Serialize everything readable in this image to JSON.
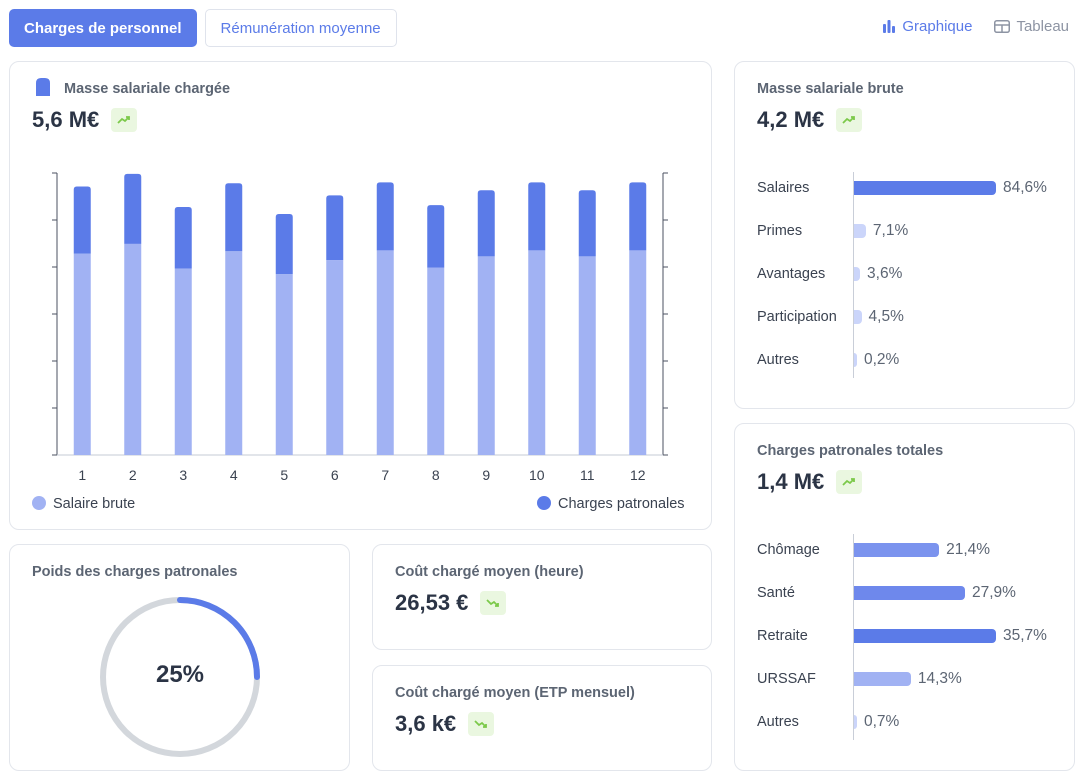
{
  "tabs": [
    {
      "label": "Charges de personnel",
      "active": true
    },
    {
      "label": "Rémunération moyenne",
      "active": false
    }
  ],
  "view_toggle": {
    "chart_label": "Graphique",
    "table_label": "Tableau",
    "active": "Graphique"
  },
  "colors": {
    "accent": "#5b7be8",
    "light": "#a1b2f3",
    "trend_bg": "#eaf7e0",
    "trend_icon": "#7cc94a",
    "donut_track": "#d3d7dc"
  },
  "masse_chargee": {
    "title": "Masse salariale chargée",
    "value": "5,6 M€",
    "trend": "up",
    "legend": {
      "salaire": "Salaire brute",
      "charges": "Charges patronales"
    }
  },
  "chart_data": {
    "type": "bar",
    "stacked": true,
    "categories": [
      "1",
      "2",
      "3",
      "4",
      "5",
      "6",
      "7",
      "8",
      "9",
      "10",
      "11",
      "12"
    ],
    "series": [
      {
        "name": "Salaire brute",
        "color": "#a1b2f3",
        "values": [
          432,
          453,
          400,
          437,
          388,
          418,
          439,
          402,
          426,
          439,
          426,
          439
        ]
      },
      {
        "name": "Charges patronales",
        "color": "#5b7be8",
        "values": [
          144,
          150,
          132,
          146,
          129,
          139,
          146,
          134,
          142,
          146,
          142,
          146
        ]
      }
    ],
    "ylim": [
      0,
      605
    ],
    "grid": false
  },
  "masse_brute": {
    "title": "Masse salariale brute",
    "value": "4,2 M€",
    "trend": "up",
    "items": [
      {
        "label": "Salaires",
        "value": 84.6,
        "text": "84,6%"
      },
      {
        "label": "Primes",
        "value": 7.1,
        "text": "7,1%"
      },
      {
        "label": "Avantages",
        "value": 3.6,
        "text": "3,6%"
      },
      {
        "label": "Participation",
        "value": 4.5,
        "text": "4,5%"
      },
      {
        "label": "Autres",
        "value": 0.2,
        "text": "0,2%"
      }
    ]
  },
  "charges_totales": {
    "title": "Charges patronales totales",
    "value": "1,4 M€",
    "trend": "up",
    "items": [
      {
        "label": "Chômage",
        "value": 21.4,
        "text": "21,4%"
      },
      {
        "label": "Santé",
        "value": 27.9,
        "text": "27,9%"
      },
      {
        "label": "Retraite",
        "value": 35.7,
        "text": "35,7%"
      },
      {
        "label": "URSSAF",
        "value": 14.3,
        "text": "14,3%"
      },
      {
        "label": "Autres",
        "value": 0.7,
        "text": "0,7%"
      }
    ]
  },
  "poids": {
    "title": "Poids des charges patronales",
    "value": "25%",
    "fraction": 0.25
  },
  "cout_heure": {
    "title": "Coût chargé moyen (heure)",
    "value": "26,53 €",
    "trend": "down"
  },
  "cout_etp": {
    "title": "Coût chargé moyen (ETP mensuel)",
    "value": "3,6 k€",
    "trend": "down"
  }
}
